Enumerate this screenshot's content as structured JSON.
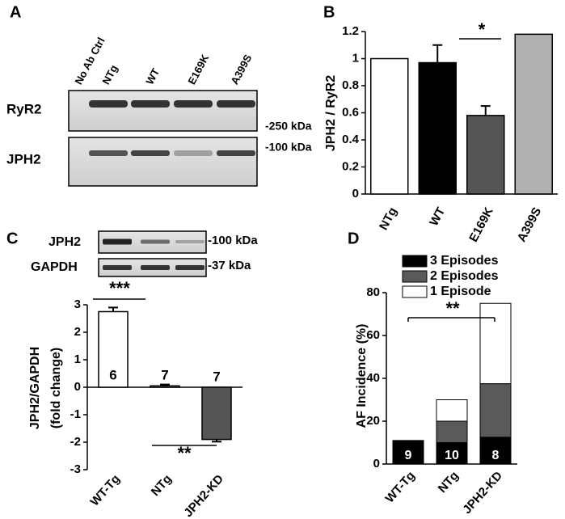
{
  "panel_labels": [
    "A",
    "B",
    "C",
    "D"
  ],
  "blot_a": {
    "lanes": [
      "No Ab Ctrl",
      "NTg",
      "WT",
      "E169K",
      "A399S"
    ],
    "rows": [
      "RyR2",
      "JPH2"
    ],
    "markers": [
      "-250 kDa",
      "-100 kDa"
    ]
  },
  "blot_c": {
    "rows": [
      "JPH2",
      "GAPDH"
    ],
    "markers": [
      "-100 kDa",
      "-37 kDa"
    ]
  },
  "chart_data": [
    {
      "type": "bar",
      "ylabel": "JPH2 / RyR2",
      "categories": [
        "NTg",
        "WT",
        "E169K",
        "A399S"
      ],
      "values": [
        1,
        0.97,
        0.58,
        1.18
      ],
      "errors": [
        null,
        0.13,
        0.07,
        null
      ],
      "colors": [
        "#ffffff",
        "#000000",
        "#555555",
        "#b0b0b0"
      ],
      "ylim": [
        0,
        1.2
      ],
      "yticks": [
        0,
        0.2,
        0.4,
        0.6,
        0.8,
        1,
        1.2
      ],
      "annotations": [
        "*"
      ]
    },
    {
      "type": "bar",
      "ylabel": [
        "JPH2/GAPDH",
        "(fold change)"
      ],
      "categories": [
        "WT-Tg",
        "NTg",
        "JPH2-KD"
      ],
      "values": [
        2.75,
        0.05,
        -1.9
      ],
      "errors": [
        0.15,
        0.05,
        0.08
      ],
      "n": [
        6,
        7,
        7
      ],
      "colors": [
        "#ffffff",
        "#ffffff",
        "#555555"
      ],
      "ylim": [
        -3,
        3
      ],
      "yticks": [
        -3,
        -2,
        -1,
        0,
        1,
        2,
        3
      ],
      "annotations": [
        "***",
        "**"
      ]
    },
    {
      "type": "stacked",
      "ylabel": "AF Incidence (%)",
      "categories": [
        "WT-Tg",
        "NTg",
        "JPH2-KD"
      ],
      "series": [
        {
          "name": "3 Episodes",
          "color": "#000000",
          "values": [
            11,
            10,
            12.5
          ]
        },
        {
          "name": "2 Episodes",
          "color": "#5a5a5a",
          "values": [
            0,
            10,
            25
          ]
        },
        {
          "name": "1 Episode",
          "color": "#ffffff",
          "values": [
            0,
            10,
            37.5
          ]
        }
      ],
      "n": [
        9,
        10,
        8
      ],
      "ylim": [
        0,
        80
      ],
      "yticks": [
        0,
        20,
        40,
        60,
        80
      ],
      "annotations": [
        "**"
      ]
    }
  ]
}
